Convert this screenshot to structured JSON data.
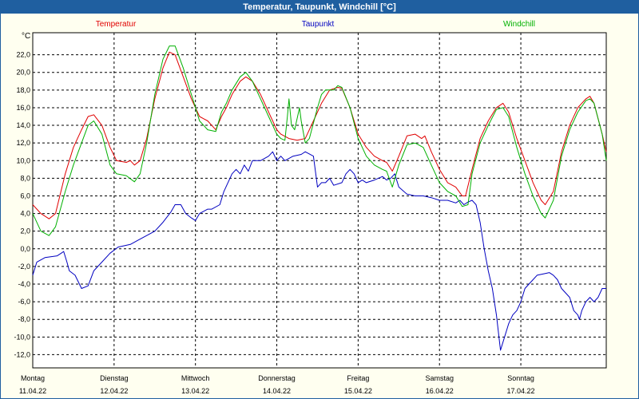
{
  "title": "Temperatur, Taupunkt, Windchill [°C]",
  "chart_data": {
    "type": "line",
    "ylabel": "°C",
    "ylim": [
      -13.5,
      24.5
    ],
    "yticks": [
      22,
      20,
      18,
      16,
      14,
      12,
      10,
      8,
      6,
      4,
      2,
      0,
      -2,
      -4,
      -6,
      -8,
      -10,
      -12
    ],
    "ytick_labels": [
      "22,0",
      "20,0",
      "18,0",
      "16,0",
      "14,0",
      "12,0",
      "10,0",
      "8,0",
      "6,0",
      "4,0",
      "2,0",
      "0,0",
      "-2,0",
      "-4,0",
      "-6,0",
      "-8,0",
      "-10,0",
      "-12,0"
    ],
    "xlim": [
      0,
      7.05
    ],
    "grid": true,
    "legend": "top",
    "days": [
      {
        "day": "Montag",
        "date": "11.04.22"
      },
      {
        "day": "Dienstag",
        "date": "12.04.22"
      },
      {
        "day": "Mittwoch",
        "date": "13.04.22"
      },
      {
        "day": "Donnerstag",
        "date": "14.04.22"
      },
      {
        "day": "Freitag",
        "date": "15.04.22"
      },
      {
        "day": "Samstag",
        "date": "16.04.22"
      },
      {
        "day": "Sonntag",
        "date": "17.04.22"
      }
    ],
    "series": [
      {
        "name": "Temperatur",
        "color": "#e00000",
        "points": [
          [
            0,
            5.0
          ],
          [
            0.1,
            4.0
          ],
          [
            0.2,
            3.4
          ],
          [
            0.28,
            4.0
          ],
          [
            0.4,
            8.5
          ],
          [
            0.5,
            11.5
          ],
          [
            0.6,
            13.5
          ],
          [
            0.68,
            15.0
          ],
          [
            0.75,
            15.2
          ],
          [
            0.85,
            14.0
          ],
          [
            0.95,
            11.5
          ],
          [
            1.03,
            10.0
          ],
          [
            1.15,
            9.8
          ],
          [
            1.2,
            10.0
          ],
          [
            1.25,
            9.5
          ],
          [
            1.32,
            10.0
          ],
          [
            1.4,
            12.5
          ],
          [
            1.5,
            17.0
          ],
          [
            1.6,
            20.5
          ],
          [
            1.68,
            22.3
          ],
          [
            1.75,
            22.0
          ],
          [
            1.85,
            19.5
          ],
          [
            1.95,
            17.0
          ],
          [
            2.05,
            15.0
          ],
          [
            2.15,
            14.5
          ],
          [
            2.25,
            13.5
          ],
          [
            2.32,
            15.0
          ],
          [
            2.38,
            16.0
          ],
          [
            2.45,
            17.5
          ],
          [
            2.55,
            19.0
          ],
          [
            2.62,
            19.5
          ],
          [
            2.7,
            19.0
          ],
          [
            2.8,
            17.5
          ],
          [
            2.9,
            15.5
          ],
          [
            3.0,
            13.5
          ],
          [
            3.05,
            13.0
          ],
          [
            3.15,
            12.5
          ],
          [
            3.25,
            12.3
          ],
          [
            3.35,
            12.5
          ],
          [
            3.45,
            14.5
          ],
          [
            3.55,
            16.5
          ],
          [
            3.65,
            18.0
          ],
          [
            3.75,
            18.3
          ],
          [
            3.8,
            18.2
          ],
          [
            3.9,
            16.0
          ],
          [
            4.0,
            13.0
          ],
          [
            4.1,
            11.5
          ],
          [
            4.2,
            10.5
          ],
          [
            4.3,
            10.0
          ],
          [
            4.35,
            9.8
          ],
          [
            4.42,
            8.8
          ],
          [
            4.5,
            10.5
          ],
          [
            4.6,
            12.8
          ],
          [
            4.7,
            13.0
          ],
          [
            4.78,
            12.5
          ],
          [
            4.82,
            12.8
          ],
          [
            4.9,
            11.0
          ],
          [
            5.0,
            9.0
          ],
          [
            5.1,
            7.5
          ],
          [
            5.2,
            7.0
          ],
          [
            5.28,
            6.0
          ],
          [
            5.32,
            6.0
          ],
          [
            5.4,
            9.0
          ],
          [
            5.5,
            12.5
          ],
          [
            5.6,
            14.5
          ],
          [
            5.7,
            16.0
          ],
          [
            5.78,
            16.5
          ],
          [
            5.85,
            15.5
          ],
          [
            5.95,
            12.5
          ],
          [
            6.05,
            10.0
          ],
          [
            6.15,
            7.5
          ],
          [
            6.25,
            5.5
          ],
          [
            6.3,
            5.0
          ],
          [
            6.4,
            6.5
          ],
          [
            6.5,
            11.0
          ],
          [
            6.6,
            14.0
          ],
          [
            6.7,
            16.0
          ],
          [
            6.8,
            17.0
          ],
          [
            6.85,
            17.3
          ],
          [
            6.9,
            16.5
          ],
          [
            7.0,
            13.0
          ],
          [
            7.05,
            11.0
          ]
        ]
      },
      {
        "name": "Taupunkt",
        "color": "#0000c0",
        "points": [
          [
            0,
            -3.0
          ],
          [
            0.05,
            -1.5
          ],
          [
            0.15,
            -1.0
          ],
          [
            0.3,
            -0.8
          ],
          [
            0.35,
            -0.5
          ],
          [
            0.38,
            -0.3
          ],
          [
            0.42,
            -1.5
          ],
          [
            0.45,
            -2.5
          ],
          [
            0.52,
            -3.0
          ],
          [
            0.6,
            -4.5
          ],
          [
            0.68,
            -4.2
          ],
          [
            0.75,
            -2.5
          ],
          [
            0.85,
            -1.5
          ],
          [
            0.95,
            -0.5
          ],
          [
            1.05,
            0.2
          ],
          [
            1.2,
            0.5
          ],
          [
            1.3,
            1.0
          ],
          [
            1.4,
            1.5
          ],
          [
            1.5,
            2.0
          ],
          [
            1.6,
            3.0
          ],
          [
            1.7,
            4.2
          ],
          [
            1.75,
            5.0
          ],
          [
            1.82,
            5.0
          ],
          [
            1.88,
            4.0
          ],
          [
            1.95,
            3.5
          ],
          [
            2.0,
            3.2
          ],
          [
            2.05,
            4.0
          ],
          [
            2.15,
            4.5
          ],
          [
            2.2,
            4.5
          ],
          [
            2.3,
            5.0
          ],
          [
            2.35,
            6.5
          ],
          [
            2.45,
            8.5
          ],
          [
            2.5,
            9.0
          ],
          [
            2.55,
            8.5
          ],
          [
            2.6,
            9.5
          ],
          [
            2.65,
            8.8
          ],
          [
            2.7,
            10.0
          ],
          [
            2.8,
            10.0
          ],
          [
            2.9,
            10.5
          ],
          [
            2.95,
            11.0
          ],
          [
            3.0,
            10.0
          ],
          [
            3.05,
            10.5
          ],
          [
            3.1,
            10.0
          ],
          [
            3.2,
            10.5
          ],
          [
            3.3,
            10.7
          ],
          [
            3.35,
            11.0
          ],
          [
            3.45,
            10.5
          ],
          [
            3.5,
            7.0
          ],
          [
            3.55,
            7.5
          ],
          [
            3.6,
            7.5
          ],
          [
            3.65,
            8.0
          ],
          [
            3.7,
            7.2
          ],
          [
            3.8,
            7.5
          ],
          [
            3.85,
            8.5
          ],
          [
            3.9,
            9.0
          ],
          [
            3.95,
            8.5
          ],
          [
            4.0,
            7.5
          ],
          [
            4.05,
            7.8
          ],
          [
            4.1,
            7.5
          ],
          [
            4.2,
            7.8
          ],
          [
            4.3,
            8.2
          ],
          [
            4.35,
            7.8
          ],
          [
            4.4,
            8.0
          ],
          [
            4.45,
            8.5
          ],
          [
            4.5,
            7.0
          ],
          [
            4.6,
            6.2
          ],
          [
            4.7,
            6.0
          ],
          [
            4.8,
            6.0
          ],
          [
            4.9,
            5.8
          ],
          [
            5.0,
            5.5
          ],
          [
            5.1,
            5.5
          ],
          [
            5.2,
            5.2
          ],
          [
            5.25,
            5.5
          ],
          [
            5.3,
            5.0
          ],
          [
            5.35,
            5.3
          ],
          [
            5.4,
            5.5
          ],
          [
            5.45,
            5.0
          ],
          [
            5.5,
            3.0
          ],
          [
            5.55,
            0.0
          ],
          [
            5.6,
            -2.5
          ],
          [
            5.65,
            -4.5
          ],
          [
            5.7,
            -7.5
          ],
          [
            5.75,
            -11.5
          ],
          [
            5.8,
            -10.0
          ],
          [
            5.85,
            -8.5
          ],
          [
            5.9,
            -7.5
          ],
          [
            5.95,
            -7.0
          ],
          [
            6.0,
            -6.0
          ],
          [
            6.05,
            -4.5
          ],
          [
            6.1,
            -4.0
          ],
          [
            6.15,
            -3.5
          ],
          [
            6.2,
            -3.0
          ],
          [
            6.3,
            -2.8
          ],
          [
            6.35,
            -2.7
          ],
          [
            6.4,
            -3.0
          ],
          [
            6.45,
            -3.5
          ],
          [
            6.5,
            -4.5
          ],
          [
            6.6,
            -5.5
          ],
          [
            6.65,
            -7.0
          ],
          [
            6.7,
            -7.5
          ],
          [
            6.72,
            -8.0
          ],
          [
            6.75,
            -7.0
          ],
          [
            6.8,
            -6.0
          ],
          [
            6.85,
            -5.5
          ],
          [
            6.9,
            -6.0
          ],
          [
            6.95,
            -5.5
          ],
          [
            7.0,
            -4.5
          ],
          [
            7.05,
            -4.5
          ]
        ]
      },
      {
        "name": "Windchill",
        "color": "#00b000",
        "points": [
          [
            0,
            4.0
          ],
          [
            0.1,
            2.0
          ],
          [
            0.2,
            1.5
          ],
          [
            0.28,
            2.5
          ],
          [
            0.4,
            6.5
          ],
          [
            0.5,
            9.5
          ],
          [
            0.6,
            12.0
          ],
          [
            0.68,
            14.0
          ],
          [
            0.75,
            14.5
          ],
          [
            0.85,
            13.0
          ],
          [
            0.95,
            9.5
          ],
          [
            1.03,
            8.5
          ],
          [
            1.15,
            8.3
          ],
          [
            1.25,
            7.6
          ],
          [
            1.32,
            8.5
          ],
          [
            1.4,
            12.0
          ],
          [
            1.5,
            17.5
          ],
          [
            1.6,
            21.5
          ],
          [
            1.68,
            23.0
          ],
          [
            1.75,
            23.0
          ],
          [
            1.85,
            20.5
          ],
          [
            1.95,
            17.5
          ],
          [
            2.05,
            14.5
          ],
          [
            2.15,
            13.5
          ],
          [
            2.25,
            13.3
          ],
          [
            2.32,
            15.5
          ],
          [
            2.38,
            16.5
          ],
          [
            2.45,
            18.0
          ],
          [
            2.55,
            19.5
          ],
          [
            2.62,
            20.0
          ],
          [
            2.7,
            19.0
          ],
          [
            2.8,
            17.0
          ],
          [
            2.9,
            15.0
          ],
          [
            3.0,
            13.0
          ],
          [
            3.05,
            12.5
          ],
          [
            3.1,
            12.3
          ],
          [
            3.13,
            15.0
          ],
          [
            3.15,
            17.0
          ],
          [
            3.18,
            14.0
          ],
          [
            3.22,
            13.5
          ],
          [
            3.28,
            16.0
          ],
          [
            3.3,
            14.5
          ],
          [
            3.35,
            12.0
          ],
          [
            3.4,
            12.5
          ],
          [
            3.5,
            16.0
          ],
          [
            3.55,
            17.5
          ],
          [
            3.6,
            18.0
          ],
          [
            3.7,
            18.0
          ],
          [
            3.75,
            18.5
          ],
          [
            3.8,
            18.3
          ],
          [
            3.9,
            16.0
          ],
          [
            4.0,
            12.5
          ],
          [
            4.1,
            10.5
          ],
          [
            4.2,
            9.5
          ],
          [
            4.3,
            9.0
          ],
          [
            4.35,
            8.8
          ],
          [
            4.42,
            7.0
          ],
          [
            4.5,
            9.5
          ],
          [
            4.6,
            11.8
          ],
          [
            4.7,
            12.0
          ],
          [
            4.8,
            11.5
          ],
          [
            4.9,
            9.5
          ],
          [
            5.0,
            7.5
          ],
          [
            5.1,
            6.5
          ],
          [
            5.2,
            6.0
          ],
          [
            5.28,
            4.8
          ],
          [
            5.35,
            5.0
          ],
          [
            5.4,
            8.5
          ],
          [
            5.5,
            12.0
          ],
          [
            5.6,
            14.0
          ],
          [
            5.7,
            15.8
          ],
          [
            5.78,
            16.0
          ],
          [
            5.85,
            15.0
          ],
          [
            5.95,
            11.5
          ],
          [
            6.05,
            8.5
          ],
          [
            6.15,
            6.0
          ],
          [
            6.25,
            4.0
          ],
          [
            6.3,
            3.5
          ],
          [
            6.4,
            5.5
          ],
          [
            6.5,
            10.5
          ],
          [
            6.6,
            13.5
          ],
          [
            6.7,
            15.5
          ],
          [
            6.8,
            16.8
          ],
          [
            6.85,
            17.0
          ],
          [
            6.9,
            16.5
          ],
          [
            7.0,
            13.0
          ],
          [
            7.05,
            10.0
          ]
        ]
      }
    ]
  }
}
